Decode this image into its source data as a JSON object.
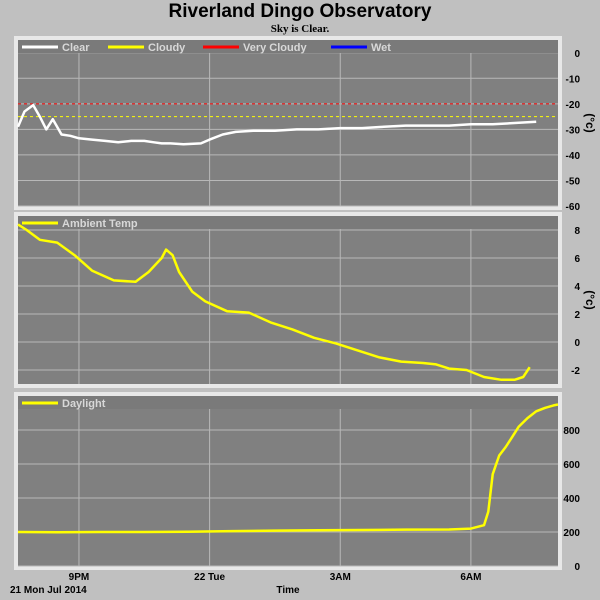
{
  "title": "Riverland Dingo Observatory",
  "subtitle": "Sky is Clear.",
  "date_label": "21 Mon Jul 2014",
  "xlabel": "Time",
  "colors": {
    "background": "#c0c0c0",
    "plot_bg": "#808080",
    "grid": "#b8b8b8",
    "clear": "#ffffff",
    "cloudy": "#ffff00",
    "very_cloudy": "#ff0000",
    "wet": "#0000ff",
    "series": "#ffff00"
  },
  "chart_data": [
    {
      "type": "line",
      "name": "sky",
      "legend": [
        {
          "label": "Clear",
          "color": "#ffffff"
        },
        {
          "label": "Cloudy",
          "color": "#ffff00"
        },
        {
          "label": "Very Cloudy",
          "color": "#ff0000"
        },
        {
          "label": "Wet",
          "color": "#0000ff"
        }
      ],
      "ylabel": "(°c)",
      "ylim": [
        -60,
        5
      ],
      "yticks": [
        0,
        -10,
        -20,
        -30,
        -40,
        -50,
        -60
      ],
      "thresholds": [
        {
          "label": "Very Cloudy",
          "value": -20,
          "color": "#ff0000"
        },
        {
          "label": "Cloudy",
          "value": -25,
          "color": "#ffff00"
        }
      ],
      "series": [
        {
          "name": "Clear",
          "color": "#ffffff",
          "x": [
            19.6,
            19.75,
            19.95,
            20.1,
            20.25,
            20.4,
            20.6,
            20.8,
            21.0,
            21.3,
            21.6,
            21.9,
            22.2,
            22.5,
            22.7,
            22.9,
            23.1,
            23.4,
            23.8,
            24.0,
            24.3,
            24.6,
            25.0,
            25.5,
            26.0,
            26.5,
            27.0,
            27.5,
            28.0,
            28.5,
            29.0,
            29.5,
            30.0,
            30.5,
            31.0,
            31.5
          ],
          "y": [
            -29,
            -23,
            -20.5,
            -25,
            -30,
            -26,
            -32,
            -32.5,
            -33.5,
            -34,
            -34.5,
            -35,
            -34.5,
            -34.5,
            -35,
            -35.5,
            -35.5,
            -35.8,
            -35.5,
            -34,
            -32,
            -31,
            -30.5,
            -30.5,
            -30,
            -30,
            -29.5,
            -29.5,
            -29,
            -28.5,
            -28.5,
            -28.5,
            -28,
            -28,
            -27.5,
            -27
          ]
        }
      ]
    },
    {
      "type": "line",
      "name": "ambient",
      "legend": [
        {
          "label": "Ambient Temp",
          "color": "#ffff00"
        }
      ],
      "ylabel": "(°c)",
      "ylim": [
        -3,
        9
      ],
      "yticks": [
        8,
        6,
        4,
        2,
        0,
        -2
      ],
      "series": [
        {
          "name": "Ambient Temp",
          "color": "#ffff00",
          "x": [
            19.6,
            19.8,
            20.1,
            20.5,
            20.9,
            21.3,
            21.8,
            22.3,
            22.6,
            22.9,
            23.0,
            23.15,
            23.3,
            23.6,
            23.9,
            24.4,
            24.9,
            25.4,
            25.9,
            26.4,
            26.9,
            27.4,
            27.9,
            28.4,
            28.9,
            29.2,
            29.5,
            29.9,
            30.3,
            30.7,
            31.0,
            31.2,
            31.35
          ],
          "y": [
            8.4,
            8.0,
            7.3,
            7.1,
            6.2,
            5.1,
            4.4,
            4.3,
            5.0,
            6.0,
            6.6,
            6.2,
            5.0,
            3.6,
            2.9,
            2.2,
            2.1,
            1.4,
            0.9,
            0.3,
            -0.1,
            -0.6,
            -1.1,
            -1.4,
            -1.5,
            -1.6,
            -1.9,
            -2.0,
            -2.5,
            -2.7,
            -2.7,
            -2.5,
            -1.8
          ]
        }
      ]
    },
    {
      "type": "line",
      "name": "daylight",
      "legend": [
        {
          "label": "Daylight",
          "color": "#ffff00"
        }
      ],
      "ylim": [
        0,
        1000
      ],
      "yticks": [
        800,
        600,
        400,
        200,
        0
      ],
      "series": [
        {
          "name": "Daylight",
          "color": "#ffff00",
          "x": [
            19.6,
            20.5,
            21.5,
            22.5,
            23.5,
            24.5,
            25.5,
            26.5,
            27.5,
            28.5,
            29.5,
            30.0,
            30.3,
            30.4,
            30.5,
            30.65,
            30.8,
            30.95,
            31.1,
            31.3,
            31.5,
            31.7,
            31.9,
            32.0
          ],
          "y": [
            200,
            198,
            200,
            200,
            202,
            205,
            208,
            210,
            212,
            214,
            215,
            220,
            240,
            320,
            540,
            650,
            700,
            760,
            820,
            870,
            910,
            930,
            945,
            950
          ]
        }
      ]
    }
  ],
  "x_axis": {
    "range": [
      19.6,
      32.0
    ],
    "ticks": [
      {
        "x": 21,
        "label": "9PM"
      },
      {
        "x": 24,
        "label": "22 Tue"
      },
      {
        "x": 27,
        "label": "3AM"
      },
      {
        "x": 30,
        "label": "6AM"
      }
    ]
  }
}
